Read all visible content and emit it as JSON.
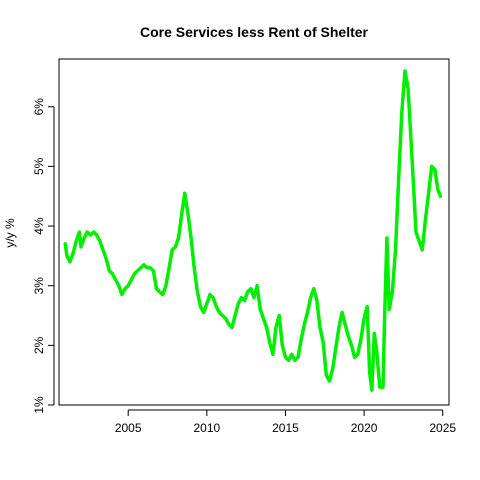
{
  "chart_data": {
    "type": "line",
    "title": "Core Services less Rent of Shelter",
    "xlabel": "",
    "ylabel": "y/y %",
    "xlim": [
      2000.6,
      2025.4
    ],
    "ylim": [
      1.0,
      6.8
    ],
    "x_ticks": [
      {
        "value": 2005,
        "label": "2005"
      },
      {
        "value": 2010,
        "label": "2010"
      },
      {
        "value": 2015,
        "label": "2015"
      },
      {
        "value": 2020,
        "label": "2020"
      },
      {
        "value": 2025,
        "label": "2025"
      }
    ],
    "y_ticks": [
      {
        "value": 1,
        "label": "1%"
      },
      {
        "value": 2,
        "label": "2%"
      },
      {
        "value": 3,
        "label": "3%"
      },
      {
        "value": 4,
        "label": "4%"
      },
      {
        "value": 5,
        "label": "5%"
      },
      {
        "value": 6,
        "label": "6%"
      }
    ],
    "grid": false,
    "legend": "none",
    "series": [
      {
        "color": "#00ee00",
        "x": [
          2001.0,
          2001.1,
          2001.3,
          2001.5,
          2001.7,
          2001.9,
          2002.0,
          2002.2,
          2002.4,
          2002.6,
          2002.8,
          2003.0,
          2003.2,
          2003.4,
          2003.6,
          2003.8,
          2004.0,
          2004.2,
          2004.4,
          2004.6,
          2004.8,
          2005.0,
          2005.2,
          2005.4,
          2005.6,
          2005.8,
          2006.0,
          2006.2,
          2006.4,
          2006.6,
          2006.8,
          2007.0,
          2007.2,
          2007.4,
          2007.6,
          2007.8,
          2008.0,
          2008.2,
          2008.4,
          2008.6,
          2008.8,
          2009.0,
          2009.2,
          2009.4,
          2009.6,
          2009.8,
          2010.0,
          2010.2,
          2010.4,
          2010.6,
          2010.8,
          2011.0,
          2011.2,
          2011.4,
          2011.6,
          2011.8,
          2012.0,
          2012.2,
          2012.4,
          2012.6,
          2012.8,
          2013.0,
          2013.2,
          2013.4,
          2013.6,
          2013.8,
          2014.0,
          2014.2,
          2014.4,
          2014.6,
          2014.8,
          2015.0,
          2015.2,
          2015.4,
          2015.6,
          2015.8,
          2016.0,
          2016.2,
          2016.4,
          2016.6,
          2016.8,
          2017.0,
          2017.2,
          2017.4,
          2017.6,
          2017.8,
          2018.0,
          2018.2,
          2018.4,
          2018.6,
          2018.8,
          2019.0,
          2019.2,
          2019.4,
          2019.6,
          2019.8,
          2020.0,
          2020.2,
          2020.35,
          2020.5,
          2020.65,
          2020.8,
          2021.0,
          2021.2,
          2021.3,
          2021.45,
          2021.6,
          2021.8,
          2022.0,
          2022.2,
          2022.4,
          2022.6,
          2022.8,
          2022.95,
          2023.1,
          2023.3,
          2023.5,
          2023.7,
          2023.9,
          2024.1,
          2024.3,
          2024.5,
          2024.7,
          2024.85
        ],
        "values": [
          3.7,
          3.5,
          3.4,
          3.55,
          3.75,
          3.9,
          3.65,
          3.8,
          3.9,
          3.85,
          3.9,
          3.85,
          3.75,
          3.6,
          3.45,
          3.25,
          3.2,
          3.1,
          3.0,
          2.85,
          2.95,
          3.0,
          3.1,
          3.2,
          3.25,
          3.3,
          3.35,
          3.3,
          3.3,
          3.25,
          2.95,
          2.9,
          2.85,
          3.0,
          3.3,
          3.6,
          3.65,
          3.8,
          4.2,
          4.55,
          4.2,
          3.8,
          3.3,
          2.9,
          2.65,
          2.55,
          2.7,
          2.85,
          2.8,
          2.65,
          2.55,
          2.5,
          2.45,
          2.35,
          2.3,
          2.5,
          2.7,
          2.8,
          2.75,
          2.9,
          2.95,
          2.8,
          3.0,
          2.6,
          2.45,
          2.3,
          2.05,
          1.85,
          2.3,
          2.5,
          2.0,
          1.8,
          1.75,
          1.85,
          1.75,
          1.8,
          2.1,
          2.35,
          2.55,
          2.8,
          2.95,
          2.75,
          2.3,
          2.05,
          1.5,
          1.4,
          1.6,
          1.95,
          2.3,
          2.55,
          2.35,
          2.15,
          2.0,
          1.8,
          1.85,
          2.1,
          2.45,
          2.65,
          1.55,
          1.25,
          2.2,
          1.9,
          1.3,
          1.3,
          2.4,
          3.8,
          2.6,
          2.9,
          3.6,
          4.8,
          5.9,
          6.6,
          6.3,
          5.6,
          4.9,
          3.9,
          3.75,
          3.6,
          4.1,
          4.55,
          5.0,
          4.95,
          4.6,
          4.5
        ]
      }
    ]
  }
}
